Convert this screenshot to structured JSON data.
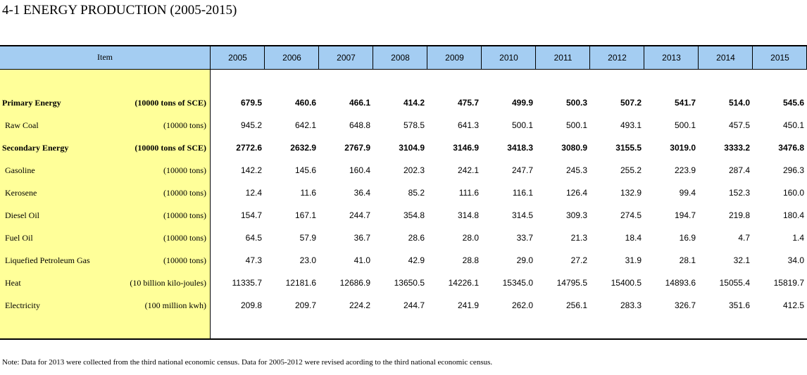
{
  "title": "4-1 ENERGY PRODUCTION (2005-2015)",
  "table": {
    "item_header": "Item",
    "years": [
      "2005",
      "2006",
      "2007",
      "2008",
      "2009",
      "2010",
      "2011",
      "2012",
      "2013",
      "2014",
      "2015"
    ],
    "rows": [
      {
        "label": "Primary Energy",
        "unit": "(10000 tons of SCE)",
        "bold": true,
        "values": [
          "679.5",
          "460.6",
          "466.1",
          "414.2",
          "475.7",
          "499.9",
          "500.3",
          "507.2",
          "541.7",
          "514.0",
          "545.6"
        ]
      },
      {
        "label": "Raw Coal",
        "unit": "(10000 tons)",
        "bold": false,
        "values": [
          "945.2",
          "642.1",
          "648.8",
          "578.5",
          "641.3",
          "500.1",
          "500.1",
          "493.1",
          "500.1",
          "457.5",
          "450.1"
        ]
      },
      {
        "label": "Secondary Energy",
        "unit": "(10000 tons of SCE)",
        "bold": true,
        "values": [
          "2772.6",
          "2632.9",
          "2767.9",
          "3104.9",
          "3146.9",
          "3418.3",
          "3080.9",
          "3155.5",
          "3019.0",
          "3333.2",
          "3476.8"
        ]
      },
      {
        "label": "Gasoline",
        "unit": "(10000 tons)",
        "bold": false,
        "values": [
          "142.2",
          "145.6",
          "160.4",
          "202.3",
          "242.1",
          "247.7",
          "245.3",
          "255.2",
          "223.9",
          "287.4",
          "296.3"
        ]
      },
      {
        "label": "Kerosene",
        "unit": "(10000 tons)",
        "bold": false,
        "values": [
          "12.4",
          "11.6",
          "36.4",
          "85.2",
          "111.6",
          "116.1",
          "126.4",
          "132.9",
          "99.4",
          "152.3",
          "160.0"
        ]
      },
      {
        "label": "Diesel Oil",
        "unit": "(10000 tons)",
        "bold": false,
        "values": [
          "154.7",
          "167.1",
          "244.7",
          "354.8",
          "314.8",
          "314.5",
          "309.3",
          "274.5",
          "194.7",
          "219.8",
          "180.4"
        ]
      },
      {
        "label": "Fuel Oil",
        "unit": "(10000 tons)",
        "bold": false,
        "values": [
          "64.5",
          "57.9",
          "36.7",
          "28.6",
          "28.0",
          "33.7",
          "21.3",
          "18.4",
          "16.9",
          "4.7",
          "1.4"
        ]
      },
      {
        "label": "Liquefied Petroleum Gas",
        "unit": "(10000 tons)",
        "bold": false,
        "values": [
          "47.3",
          "23.0",
          "41.0",
          "42.9",
          "28.8",
          "29.0",
          "27.2",
          "31.9",
          "28.1",
          "32.1",
          "34.0"
        ]
      },
      {
        "label": "Heat",
        "unit": "(10 billion kilo-joules)",
        "bold": false,
        "values": [
          "11335.7",
          "12181.6",
          "12686.9",
          "13650.5",
          "14226.1",
          "15345.0",
          "14795.5",
          "15400.5",
          "14893.6",
          "15055.4",
          "15819.7"
        ]
      },
      {
        "label": "Electricity",
        "unit": "(100 million kwh)",
        "bold": false,
        "values": [
          "209.8",
          "209.7",
          "224.2",
          "244.7",
          "241.9",
          "262.0",
          "256.1",
          "283.3",
          "326.7",
          "351.6",
          "412.5"
        ]
      }
    ]
  },
  "note": "Note:   Data for 2013 were collected from the third  national economic census. Data for 2005-2012 were revised acording to the third national economic census."
}
